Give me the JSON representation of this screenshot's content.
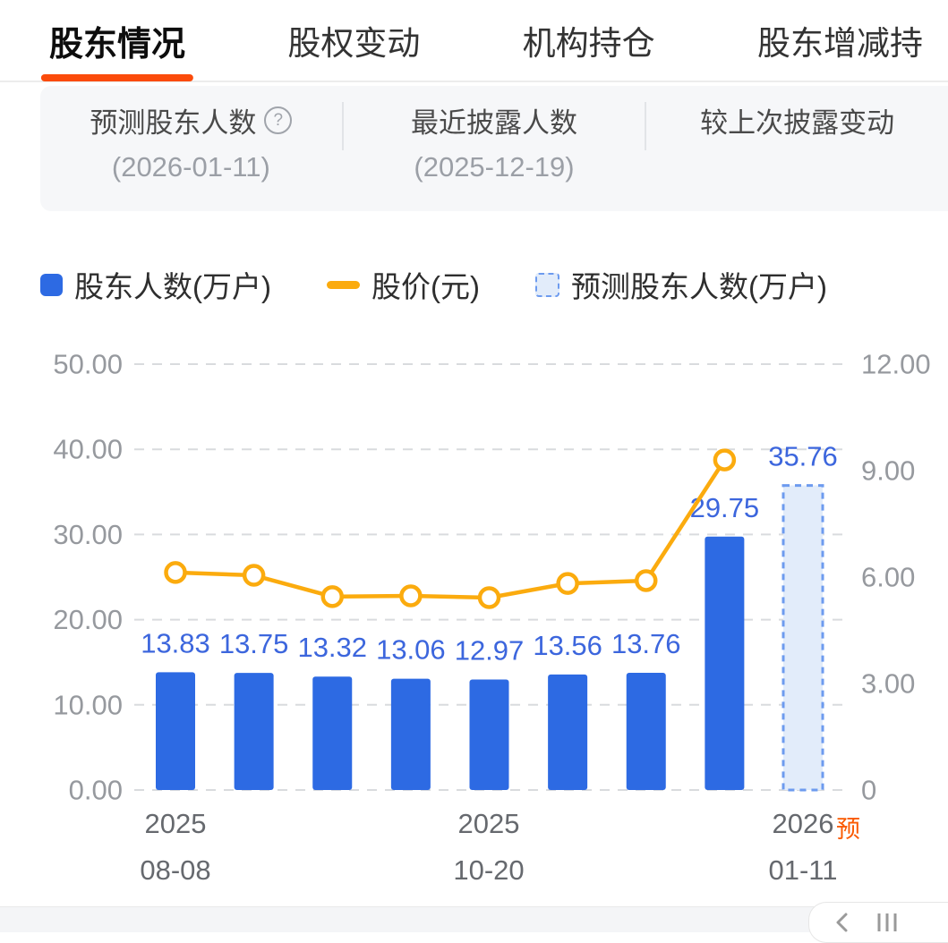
{
  "tabs": [
    {
      "label": "股东情况",
      "active": true
    },
    {
      "label": "股权变动",
      "active": false
    },
    {
      "label": "机构持仓",
      "active": false
    },
    {
      "label": "股东增减持",
      "active": false
    }
  ],
  "summary": {
    "columns": [
      {
        "title": "预测股东人数",
        "help_icon": "question-circle",
        "date": "(2026-01-11)"
      },
      {
        "title": "最近披露人数",
        "date": "(2025-12-19)"
      },
      {
        "title": "较上次披露变动",
        "date": ""
      }
    ]
  },
  "legend": [
    {
      "label": "股东人数(万户)",
      "type": "bar"
    },
    {
      "label": "股价(元)",
      "type": "line"
    },
    {
      "label": "预测股东人数(万户)",
      "type": "forecast-bar"
    }
  ],
  "colors": {
    "bar": "#2d6ae3",
    "line": "#fbab0e",
    "forecast_fill": "#e2ecfa",
    "forecast_border": "#6d9bef",
    "value_label": "#3c66dd",
    "accent": "#fb4b0b",
    "axis_text": "#96999e",
    "gridline": "#d9dbde"
  },
  "chart_data": {
    "type": "bar",
    "title": "股东人数与股价",
    "left_axis": {
      "label": "股东人数(万户)",
      "min": 0,
      "max": 50,
      "ticks": [
        "50.00",
        "40.00",
        "30.00",
        "20.00",
        "10.00",
        "0.00"
      ]
    },
    "right_axis": {
      "label": "股价(元)",
      "min": 0,
      "max": 12,
      "ticks": [
        "12.00",
        "9.00",
        "6.00",
        "3.00",
        "0"
      ]
    },
    "bars": {
      "name": "股东人数(万户)",
      "values": [
        13.83,
        13.75,
        13.32,
        13.06,
        12.97,
        13.56,
        13.76,
        29.75
      ]
    },
    "bar_labels": [
      "13.83",
      "13.75",
      "13.32",
      "13.06",
      "12.97",
      "13.56",
      "13.76",
      "29.75"
    ],
    "forecast_bar": {
      "name": "预测股东人数(万户)",
      "value": 35.76
    },
    "forecast_label": "35.76",
    "line": {
      "name": "股价(元)",
      "values": [
        6.13,
        6.05,
        5.45,
        5.47,
        5.42,
        5.82,
        5.9,
        9.3
      ]
    },
    "x_labels": [
      {
        "line1": "2025",
        "line2": "08-08"
      },
      {
        "line1": "2025",
        "line2": "10-20"
      },
      {
        "line1": "2026",
        "line2": "01-11"
      }
    ],
    "forecast_tag": "预",
    "grid": "dashed-horizontal",
    "legend_position": "top"
  },
  "floating_toolbar": {
    "icons": [
      "back-icon",
      "kline-icon"
    ]
  }
}
